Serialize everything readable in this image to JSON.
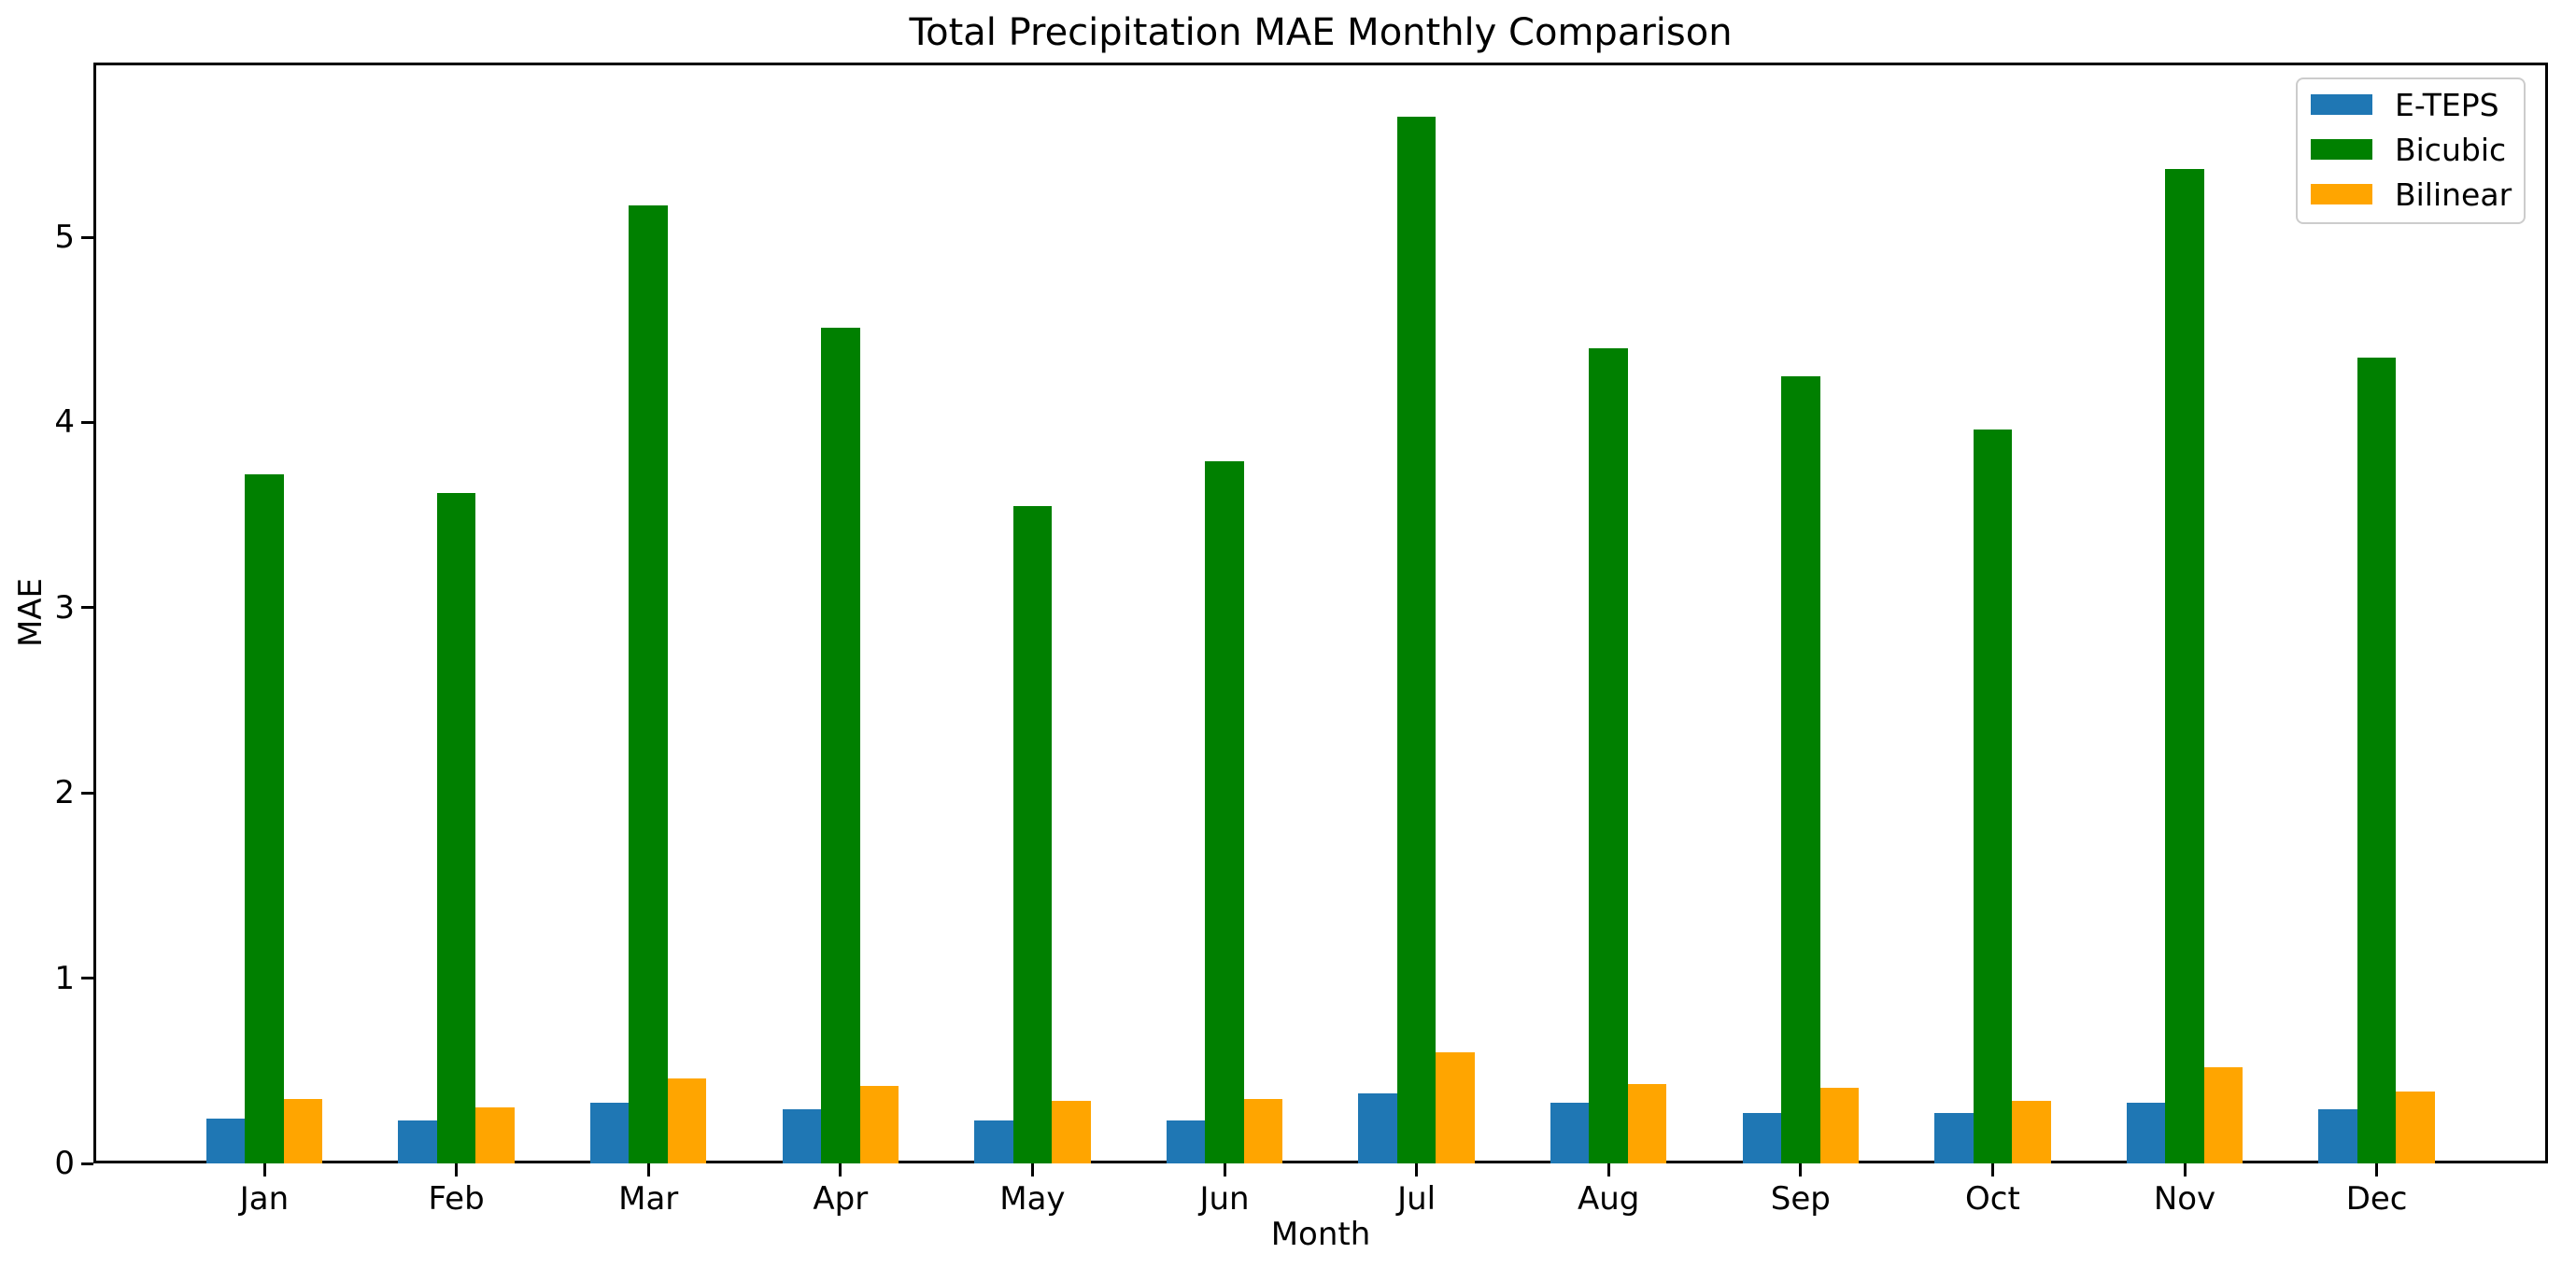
{
  "figure": {
    "background": "#ffffff",
    "spine_color": "#000000",
    "legend_border_color": "#cccccc"
  },
  "chart_data": {
    "type": "bar",
    "title": "Total Precipitation MAE Monthly Comparison",
    "xlabel": "Month",
    "ylabel": "MAE",
    "categories": [
      "Jan",
      "Feb",
      "Mar",
      "Apr",
      "May",
      "Jun",
      "Jul",
      "Aug",
      "Sep",
      "Oct",
      "Nov",
      "Dec"
    ],
    "series": [
      {
        "name": "E-TEPS",
        "color": "#1f77b4",
        "values": [
          0.24,
          0.23,
          0.33,
          0.29,
          0.23,
          0.23,
          0.38,
          0.33,
          0.27,
          0.27,
          0.33,
          0.29
        ]
      },
      {
        "name": "Bicubic",
        "color": "#008000",
        "values": [
          3.72,
          3.62,
          5.17,
          4.51,
          3.55,
          3.79,
          5.65,
          4.4,
          4.25,
          3.96,
          5.37,
          4.35
        ]
      },
      {
        "name": "Bilinear",
        "color": "#ffa500",
        "values": [
          0.35,
          0.3,
          0.46,
          0.42,
          0.34,
          0.35,
          0.6,
          0.43,
          0.41,
          0.34,
          0.52,
          0.39
        ]
      }
    ],
    "ylim": [
      0,
      5.94
    ],
    "yticks": [
      "0",
      "1",
      "2",
      "3",
      "4",
      "5"
    ],
    "grid": false,
    "legend_position": "upper right"
  }
}
